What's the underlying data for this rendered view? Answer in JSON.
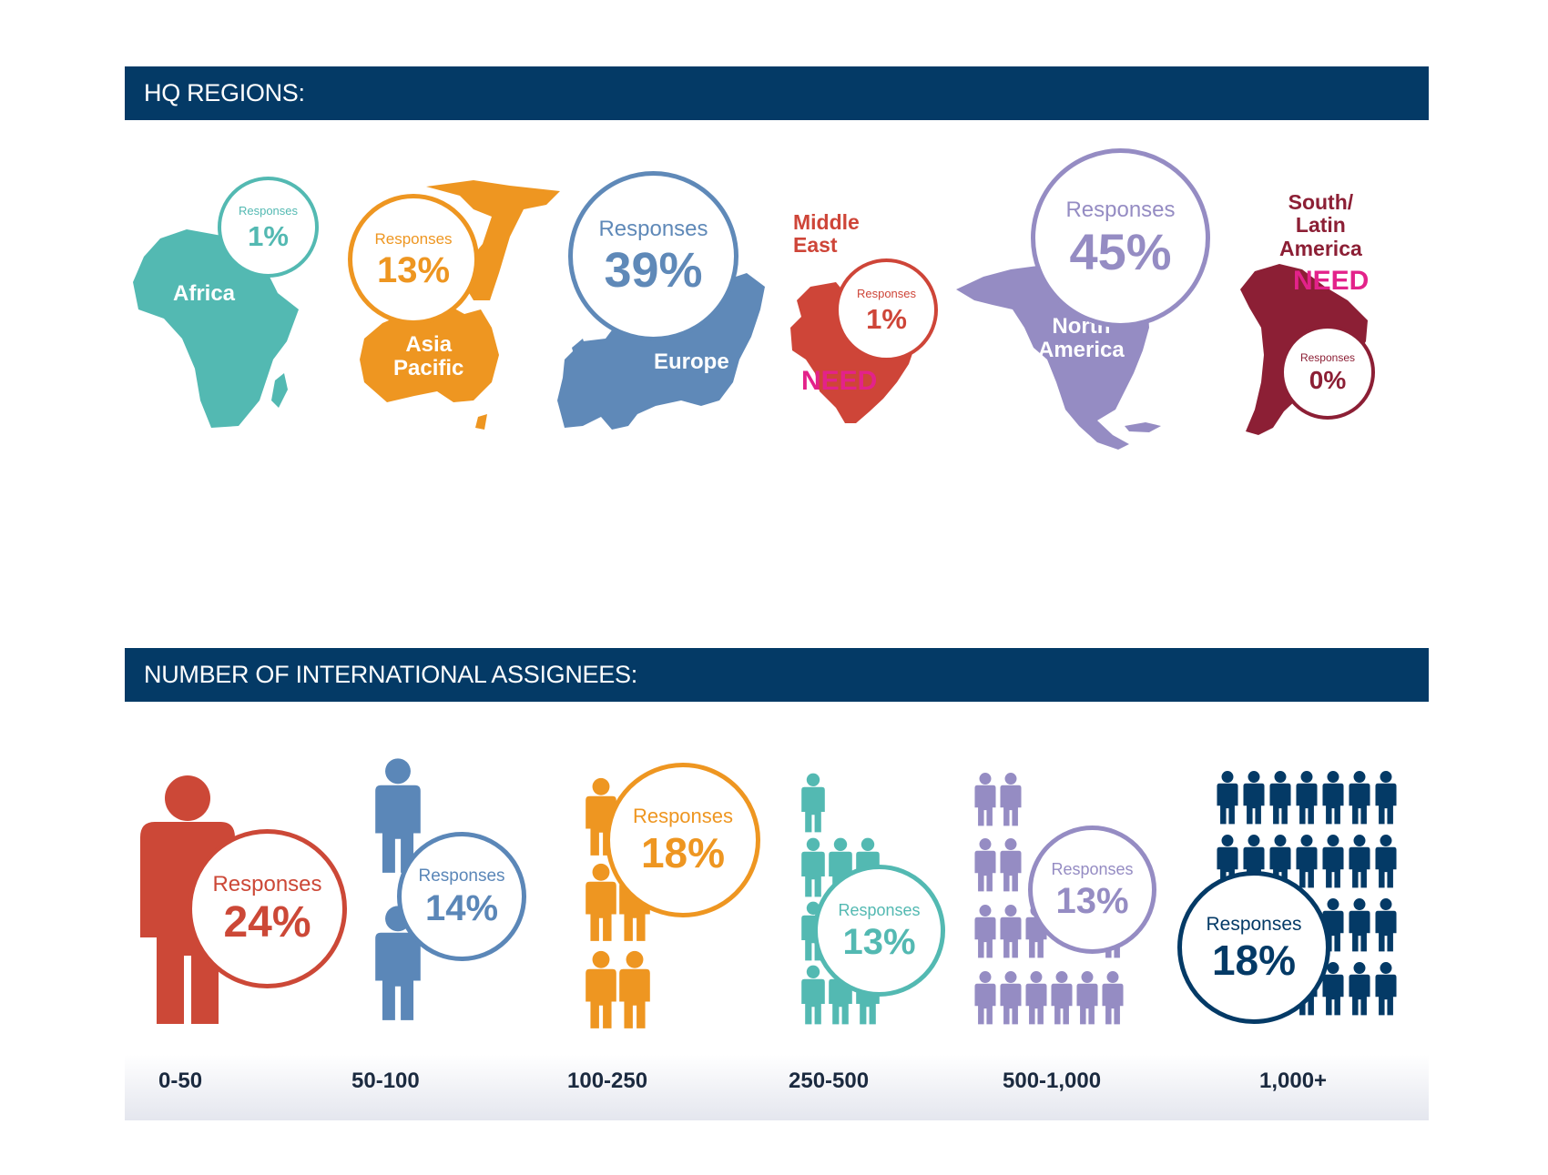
{
  "headers": {
    "regions": "HQ REGIONS:",
    "assignees": "NUMBER OF INTERNATIONAL ASSIGNEES:"
  },
  "response_label": "Responses",
  "regions": [
    {
      "name": "Africa",
      "label": "Responses",
      "value": "1%",
      "color": "#53b9b2"
    },
    {
      "name_line1": "Asia",
      "name_line2": "Pacific",
      "label": "Responses",
      "value": "13%",
      "color": "#ee9621"
    },
    {
      "name": "Europe",
      "label": "Responses",
      "value": "39%",
      "color": "#5f89b8"
    },
    {
      "name_line1": "Middle",
      "name_line2": "East",
      "label": "Responses",
      "value": "1%",
      "color": "#ce4538",
      "flag": "NEED"
    },
    {
      "name_line1": "North",
      "name_line2": "America",
      "label": "Responses",
      "value": "45%",
      "color": "#958cc3"
    },
    {
      "name_line1": "South/",
      "name_line2": "Latin",
      "name_line3": "America",
      "label": "Responses",
      "value": "0%",
      "color": "#8c1f35",
      "flag": "NEED"
    }
  ],
  "assignees": [
    {
      "range": "0-50",
      "label": "Responses",
      "value": "24%",
      "color": "#cc4837"
    },
    {
      "range": "50-100",
      "label": "Responses",
      "value": "14%",
      "color": "#5b87b8"
    },
    {
      "range": "100-250",
      "label": "Responses",
      "value": "18%",
      "color": "#ee9621"
    },
    {
      "range": "250-500",
      "label": "Responses",
      "value": "13%",
      "color": "#53b9b2"
    },
    {
      "range": "500-1,000",
      "label": "Responses",
      "value": "13%",
      "color": "#958cc3"
    },
    {
      "range": "1,000+",
      "label": "Responses",
      "value": "18%",
      "color": "#043a66"
    }
  ]
}
